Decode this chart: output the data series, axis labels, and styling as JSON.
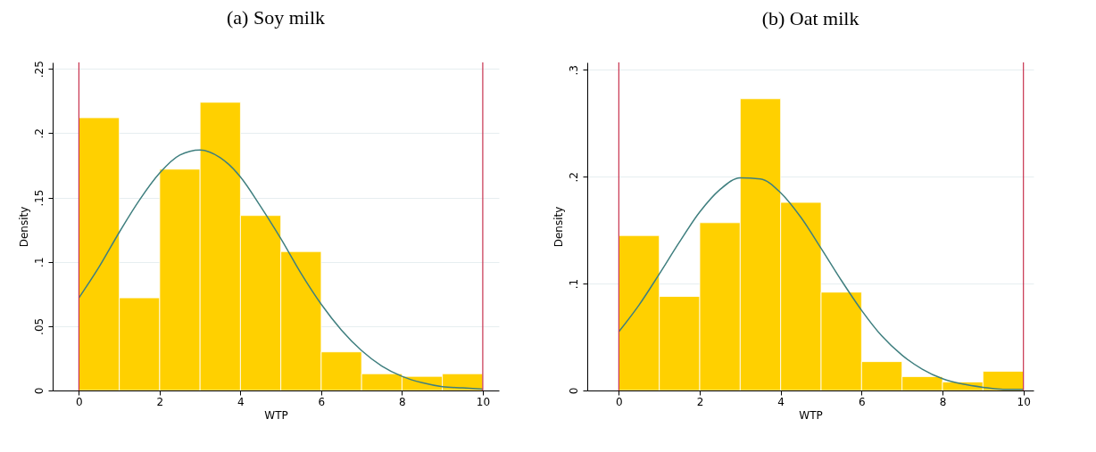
{
  "chart_data": [
    {
      "type": "histogram",
      "title": "(a) Soy milk",
      "xlabel": "WTP",
      "ylabel": "Density",
      "color": "#ffd000",
      "bins": [
        0,
        1,
        2,
        3,
        4,
        5,
        6,
        7,
        8,
        9,
        10
      ],
      "values": [
        0.212,
        0.072,
        0.172,
        0.224,
        0.136,
        0.108,
        0.03,
        0.013,
        0.011,
        0.013
      ],
      "series": [
        {
          "type": "line",
          "color": "#3f7f7f",
          "x": [
            0,
            0.5,
            1,
            1.5,
            2,
            2.5,
            3,
            3.5,
            4,
            4.5,
            5,
            5.5,
            6,
            6.5,
            7,
            7.5,
            8,
            8.5,
            9,
            9.5,
            10
          ],
          "values": [
            0.072,
            0.096,
            0.123,
            0.148,
            0.169,
            0.183,
            0.187,
            0.181,
            0.166,
            0.143,
            0.118,
            0.091,
            0.067,
            0.047,
            0.031,
            0.019,
            0.011,
            0.006,
            0.003,
            0.002,
            0.001
          ]
        }
      ],
      "ref_lines": [
        {
          "axis": "x",
          "value": 0,
          "color": "#c8334f"
        },
        {
          "axis": "x",
          "value": 10,
          "color": "#c8334f"
        }
      ],
      "xlim": [
        -0.65,
        10.4
      ],
      "xticks": [
        0,
        2,
        4,
        6,
        8,
        10
      ],
      "ylim": [
        0,
        0.255
      ],
      "yticks": [
        {
          "value": 0,
          "label": "0"
        },
        {
          "value": 0.05,
          "label": ".05"
        },
        {
          "value": 0.1,
          "label": ".1"
        },
        {
          "value": 0.15,
          "label": ".15"
        },
        {
          "value": 0.2,
          "label": ".2"
        },
        {
          "value": 0.25,
          "label": ".25"
        }
      ],
      "grid": "y"
    },
    {
      "type": "histogram",
      "title": "(b) Oat milk",
      "xlabel": "WTP",
      "ylabel": "Density",
      "color": "#ffd000",
      "bins": [
        0,
        1,
        2,
        3,
        4,
        5,
        6,
        7,
        8,
        9,
        10
      ],
      "values": [
        0.145,
        0.088,
        0.157,
        0.273,
        0.176,
        0.092,
        0.027,
        0.013,
        0.008,
        0.018
      ],
      "series": [
        {
          "type": "line",
          "color": "#3f7f7f",
          "x": [
            0,
            0.5,
            1,
            1.5,
            2,
            2.5,
            3,
            3.5,
            4,
            4.5,
            5,
            5.5,
            6,
            6.5,
            7,
            7.5,
            8,
            8.5,
            9,
            9.5,
            10
          ],
          "values": [
            0.055,
            0.08,
            0.109,
            0.139,
            0.167,
            0.188,
            0.199,
            0.198,
            0.185,
            0.162,
            0.133,
            0.103,
            0.075,
            0.051,
            0.033,
            0.02,
            0.011,
            0.006,
            0.003,
            0.001,
            0.001
          ]
        }
      ],
      "ref_lines": [
        {
          "axis": "x",
          "value": 0,
          "color": "#c8334f"
        },
        {
          "axis": "x",
          "value": 10,
          "color": "#c8334f"
        }
      ],
      "xlim": [
        -0.78,
        10.25
      ],
      "xticks": [
        0,
        2,
        4,
        6,
        8,
        10
      ],
      "ylim": [
        0,
        0.307
      ],
      "yticks": [
        {
          "value": 0,
          "label": "0"
        },
        {
          "value": 0.1,
          "label": ".1"
        },
        {
          "value": 0.2,
          "label": ".2"
        },
        {
          "value": 0.3,
          "label": ".3"
        }
      ],
      "grid": "y"
    }
  ]
}
